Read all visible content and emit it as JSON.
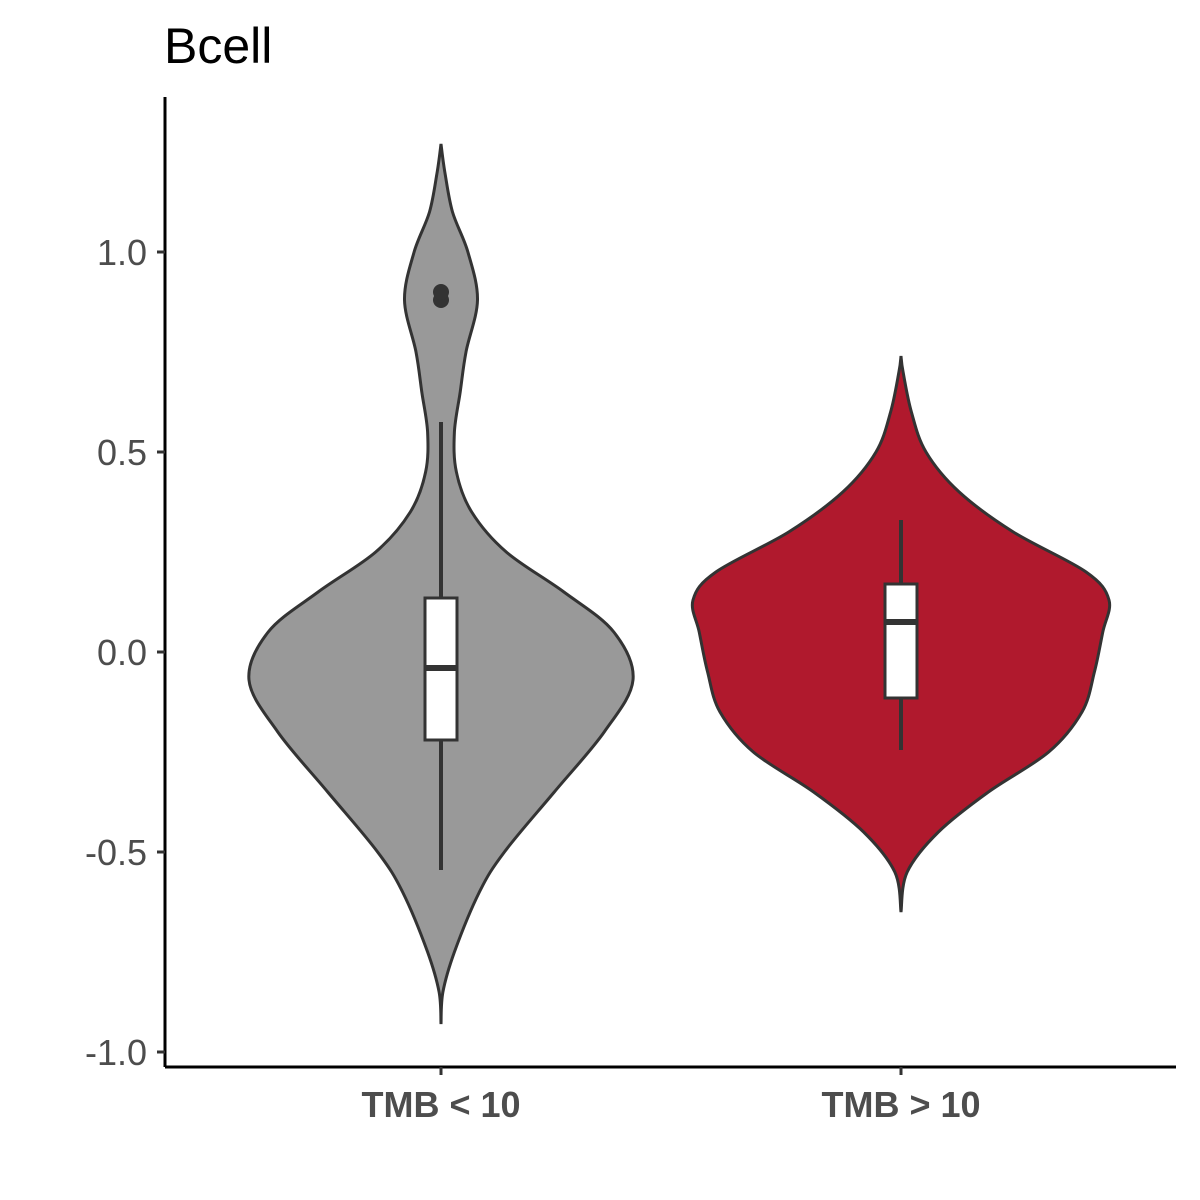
{
  "chart_data": {
    "type": "violin",
    "title": "Bcell",
    "xlabel": "",
    "ylabel": "",
    "categories": [
      "TMB < 10",
      "TMB > 10"
    ],
    "ylim": [
      -1.0,
      1.3
    ],
    "yticks": [
      {
        "value": 1.0,
        "label": "1.0"
      },
      {
        "value": 0.5,
        "label": "0.5"
      },
      {
        "value": 0.0,
        "label": "0.0"
      },
      {
        "value": -0.5,
        "label": "-0.5"
      },
      {
        "value": -1.0,
        "label": "-1.0"
      }
    ],
    "grid": false,
    "legend": "none",
    "series": [
      {
        "category": "TMB < 10",
        "color": "#999999",
        "violin_min": -0.93,
        "violin_max": 1.27,
        "density_profile": [
          [
            -0.93,
            0.0
          ],
          [
            -0.85,
            0.01
          ],
          [
            -0.75,
            0.07
          ],
          [
            -0.6,
            0.2
          ],
          [
            -0.5,
            0.33
          ],
          [
            -0.35,
            0.59
          ],
          [
            -0.2,
            0.85
          ],
          [
            -0.07,
            1.0
          ],
          [
            0.05,
            0.9
          ],
          [
            0.15,
            0.64
          ],
          [
            0.25,
            0.34
          ],
          [
            0.35,
            0.16
          ],
          [
            0.45,
            0.08
          ],
          [
            0.55,
            0.07
          ],
          [
            0.65,
            0.1
          ],
          [
            0.75,
            0.13
          ],
          [
            0.88,
            0.19
          ],
          [
            1.0,
            0.14
          ],
          [
            1.1,
            0.06
          ],
          [
            1.2,
            0.02
          ],
          [
            1.27,
            0.0
          ]
        ],
        "box": {
          "q1": -0.22,
          "median": -0.04,
          "q3": 0.135,
          "whisker_low": -0.545,
          "whisker_high": 0.575
        },
        "outliers": [
          0.88,
          0.9
        ]
      },
      {
        "category": "TMB > 10",
        "color": "#B0192D",
        "violin_min": -0.65,
        "violin_max": 0.74,
        "density_profile": [
          [
            -0.65,
            0.0
          ],
          [
            -0.55,
            0.03
          ],
          [
            -0.45,
            0.18
          ],
          [
            -0.35,
            0.42
          ],
          [
            -0.25,
            0.71
          ],
          [
            -0.15,
            0.87
          ],
          [
            -0.05,
            0.93
          ],
          [
            0.05,
            0.97
          ],
          [
            0.13,
            1.0
          ],
          [
            0.2,
            0.89
          ],
          [
            0.3,
            0.54
          ],
          [
            0.4,
            0.28
          ],
          [
            0.5,
            0.12
          ],
          [
            0.6,
            0.05
          ],
          [
            0.7,
            0.01
          ],
          [
            0.74,
            0.0
          ]
        ],
        "box": {
          "q1": -0.115,
          "median": 0.075,
          "q3": 0.17,
          "whisker_low": -0.245,
          "whisker_high": 0.33
        },
        "outliers": []
      }
    ]
  }
}
